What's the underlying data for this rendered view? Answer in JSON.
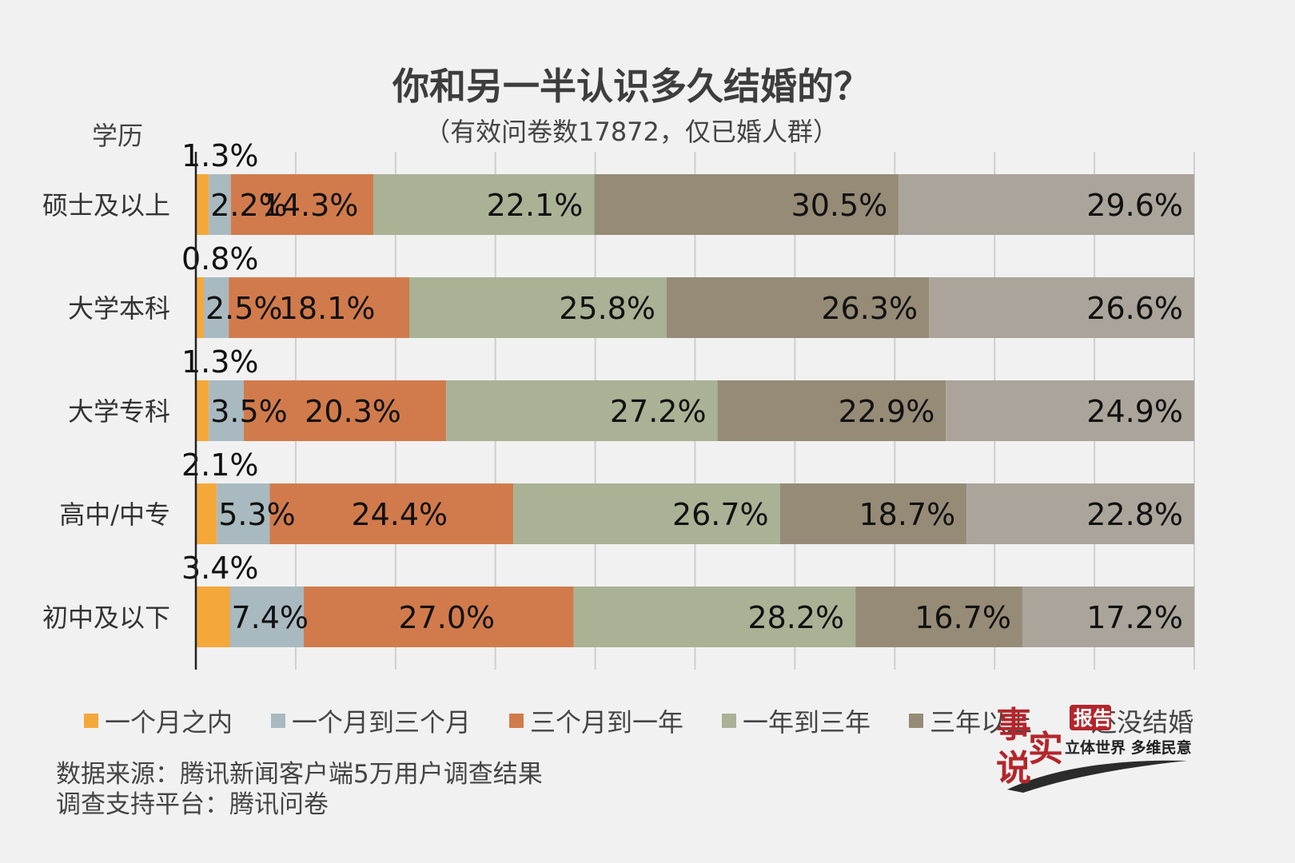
{
  "title": "你和另一半认识多久结婚的？",
  "subtitle": "（有效问卷数17872，仅已婚人群）",
  "axis_title": "学历",
  "legend": [
    {
      "label": "一个月之内",
      "color": "#f5a83a"
    },
    {
      "label": "一个月到三个月",
      "color": "#a9b9c0"
    },
    {
      "label": "三个月到一年",
      "color": "#d17b4c"
    },
    {
      "label": "一年到三年",
      "color": "#a9b294"
    },
    {
      "label": "三年以上",
      "color": "#968b76"
    },
    {
      "label": "还没结婚",
      "color": "#aaa49a"
    }
  ],
  "source_lines": [
    "数据来源：腾讯新闻客户端5万用户调查结果",
    "调查支持平台：腾讯问卷"
  ],
  "brand": {
    "logo_text": "事实说",
    "badge": "报告",
    "slogan": "立体世界 多维民意"
  },
  "chart_data": {
    "type": "bar",
    "orientation": "horizontal",
    "stacked": true,
    "categories": [
      "硕士及以上",
      "大学本科",
      "大学专科",
      "高中/中专",
      "初中及以下"
    ],
    "series": [
      {
        "name": "一个月之内",
        "values": [
          1.3,
          0.8,
          1.3,
          2.1,
          3.4
        ],
        "labels": [
          "1.3%",
          "0.8%",
          "1.3%",
          "2.1%",
          "3.4%"
        ]
      },
      {
        "name": "一个月到三个月",
        "values": [
          2.2,
          2.5,
          3.5,
          5.3,
          7.4
        ],
        "labels": [
          "2.2%",
          "2.5%",
          "3.5%",
          "5.3%",
          "7.4%"
        ]
      },
      {
        "name": "三个月到一年",
        "values": [
          14.3,
          18.1,
          20.3,
          24.4,
          27.0
        ],
        "labels": [
          "14.3%",
          "18.1%",
          "20.3%",
          "24.4%",
          "27.0%"
        ]
      },
      {
        "name": "一年到三年",
        "values": [
          22.1,
          25.8,
          27.2,
          26.7,
          28.2
        ],
        "labels": [
          "22.1%",
          "25.8%",
          "27.2%",
          "26.7%",
          "28.2%"
        ]
      },
      {
        "name": "三年以上",
        "values": [
          30.5,
          26.3,
          22.9,
          18.7,
          16.7
        ],
        "labels": [
          "30.5%",
          "26.3%",
          "22.9%",
          "18.7%",
          "16.7%"
        ]
      },
      {
        "name": "还没结婚",
        "values": [
          29.6,
          26.6,
          24.9,
          22.8,
          17.2
        ],
        "labels": [
          "29.6%",
          "26.6%",
          "24.9%",
          "22.8%",
          "17.2%"
        ]
      }
    ],
    "xlim": [
      0,
      100
    ],
    "grid": true,
    "legend_position": "bottom"
  }
}
